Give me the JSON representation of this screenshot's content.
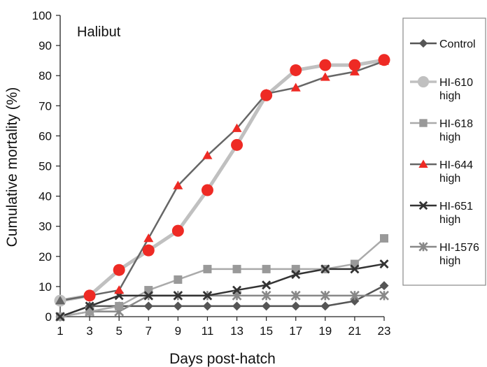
{
  "chart_data": {
    "type": "line",
    "panel_label": "Halibut",
    "xlabel": "Days post-hatch",
    "ylabel": "Cumulative mortality (%)",
    "x": [
      1,
      3,
      5,
      7,
      9,
      11,
      13,
      15,
      17,
      19,
      21,
      23
    ],
    "xlim": [
      1,
      23
    ],
    "ylim": [
      0,
      100
    ],
    "y_ticks": [
      0,
      10,
      20,
      30,
      40,
      50,
      60,
      70,
      80,
      90,
      100
    ],
    "grid": false,
    "legend_position": "right",
    "series": [
      {
        "name": "Control",
        "label_lines": [
          "Control"
        ],
        "marker": "diamond",
        "color": "#555555",
        "marker_color": "#555555",
        "line_width": 2.5,
        "values": [
          0,
          3.5,
          3.5,
          3.5,
          3.5,
          3.5,
          3.5,
          3.5,
          3.5,
          3.5,
          5.2,
          10.3
        ]
      },
      {
        "name": "HI-1576 high",
        "label_lines": [
          "HI-1576",
          "high"
        ],
        "marker": "star",
        "color": "#888888",
        "marker_color": "#888888",
        "line_width": 2.5,
        "values": [
          0,
          1.7,
          1.7,
          7,
          7,
          7,
          7,
          7,
          7,
          7,
          7,
          7
        ]
      },
      {
        "name": "HI-618 high",
        "label_lines": [
          "HI-618",
          "high"
        ],
        "marker": "square",
        "color": "#aaaaaa",
        "marker_color": "#999999",
        "line_width": 2.5,
        "values": [
          0,
          1.7,
          3.5,
          8.8,
          12.3,
          15.8,
          15.8,
          15.8,
          15.8,
          15.8,
          17.5,
          26
        ]
      },
      {
        "name": "HI-651 high",
        "label_lines": [
          "HI-651",
          "high"
        ],
        "marker": "x",
        "color": "#333333",
        "marker_color": "#333333",
        "line_width": 2.5,
        "values": [
          0,
          3.5,
          7,
          7,
          7,
          7,
          8.8,
          10.5,
          14,
          15.8,
          15.8,
          17.5
        ]
      },
      {
        "name": "HI-610 high",
        "label_lines": [
          "HI-610",
          "high"
        ],
        "marker": "circle",
        "color": "#c0c0c0",
        "marker_color": "#ee2a24",
        "first_marker_color": "#c0c0c0",
        "line_width": 5,
        "values": [
          5.3,
          7,
          15.5,
          22,
          28.5,
          42,
          57,
          73.5,
          81.8,
          83.5,
          83.5,
          85.2
        ]
      },
      {
        "name": "HI-644 high",
        "label_lines": [
          "HI-644",
          "high"
        ],
        "marker": "triangle",
        "color": "#666666",
        "marker_color": "#ee2a24",
        "first_marker_color": "#666666",
        "line_width": 2.5,
        "values": [
          5.3,
          7,
          8.8,
          26,
          43.5,
          53.5,
          62.5,
          74,
          76,
          79.5,
          81.3,
          84.8
        ]
      }
    ],
    "legend_order": [
      "Control",
      "HI-610 high",
      "HI-618 high",
      "HI-644 high",
      "HI-651 high",
      "HI-1576 high"
    ]
  }
}
